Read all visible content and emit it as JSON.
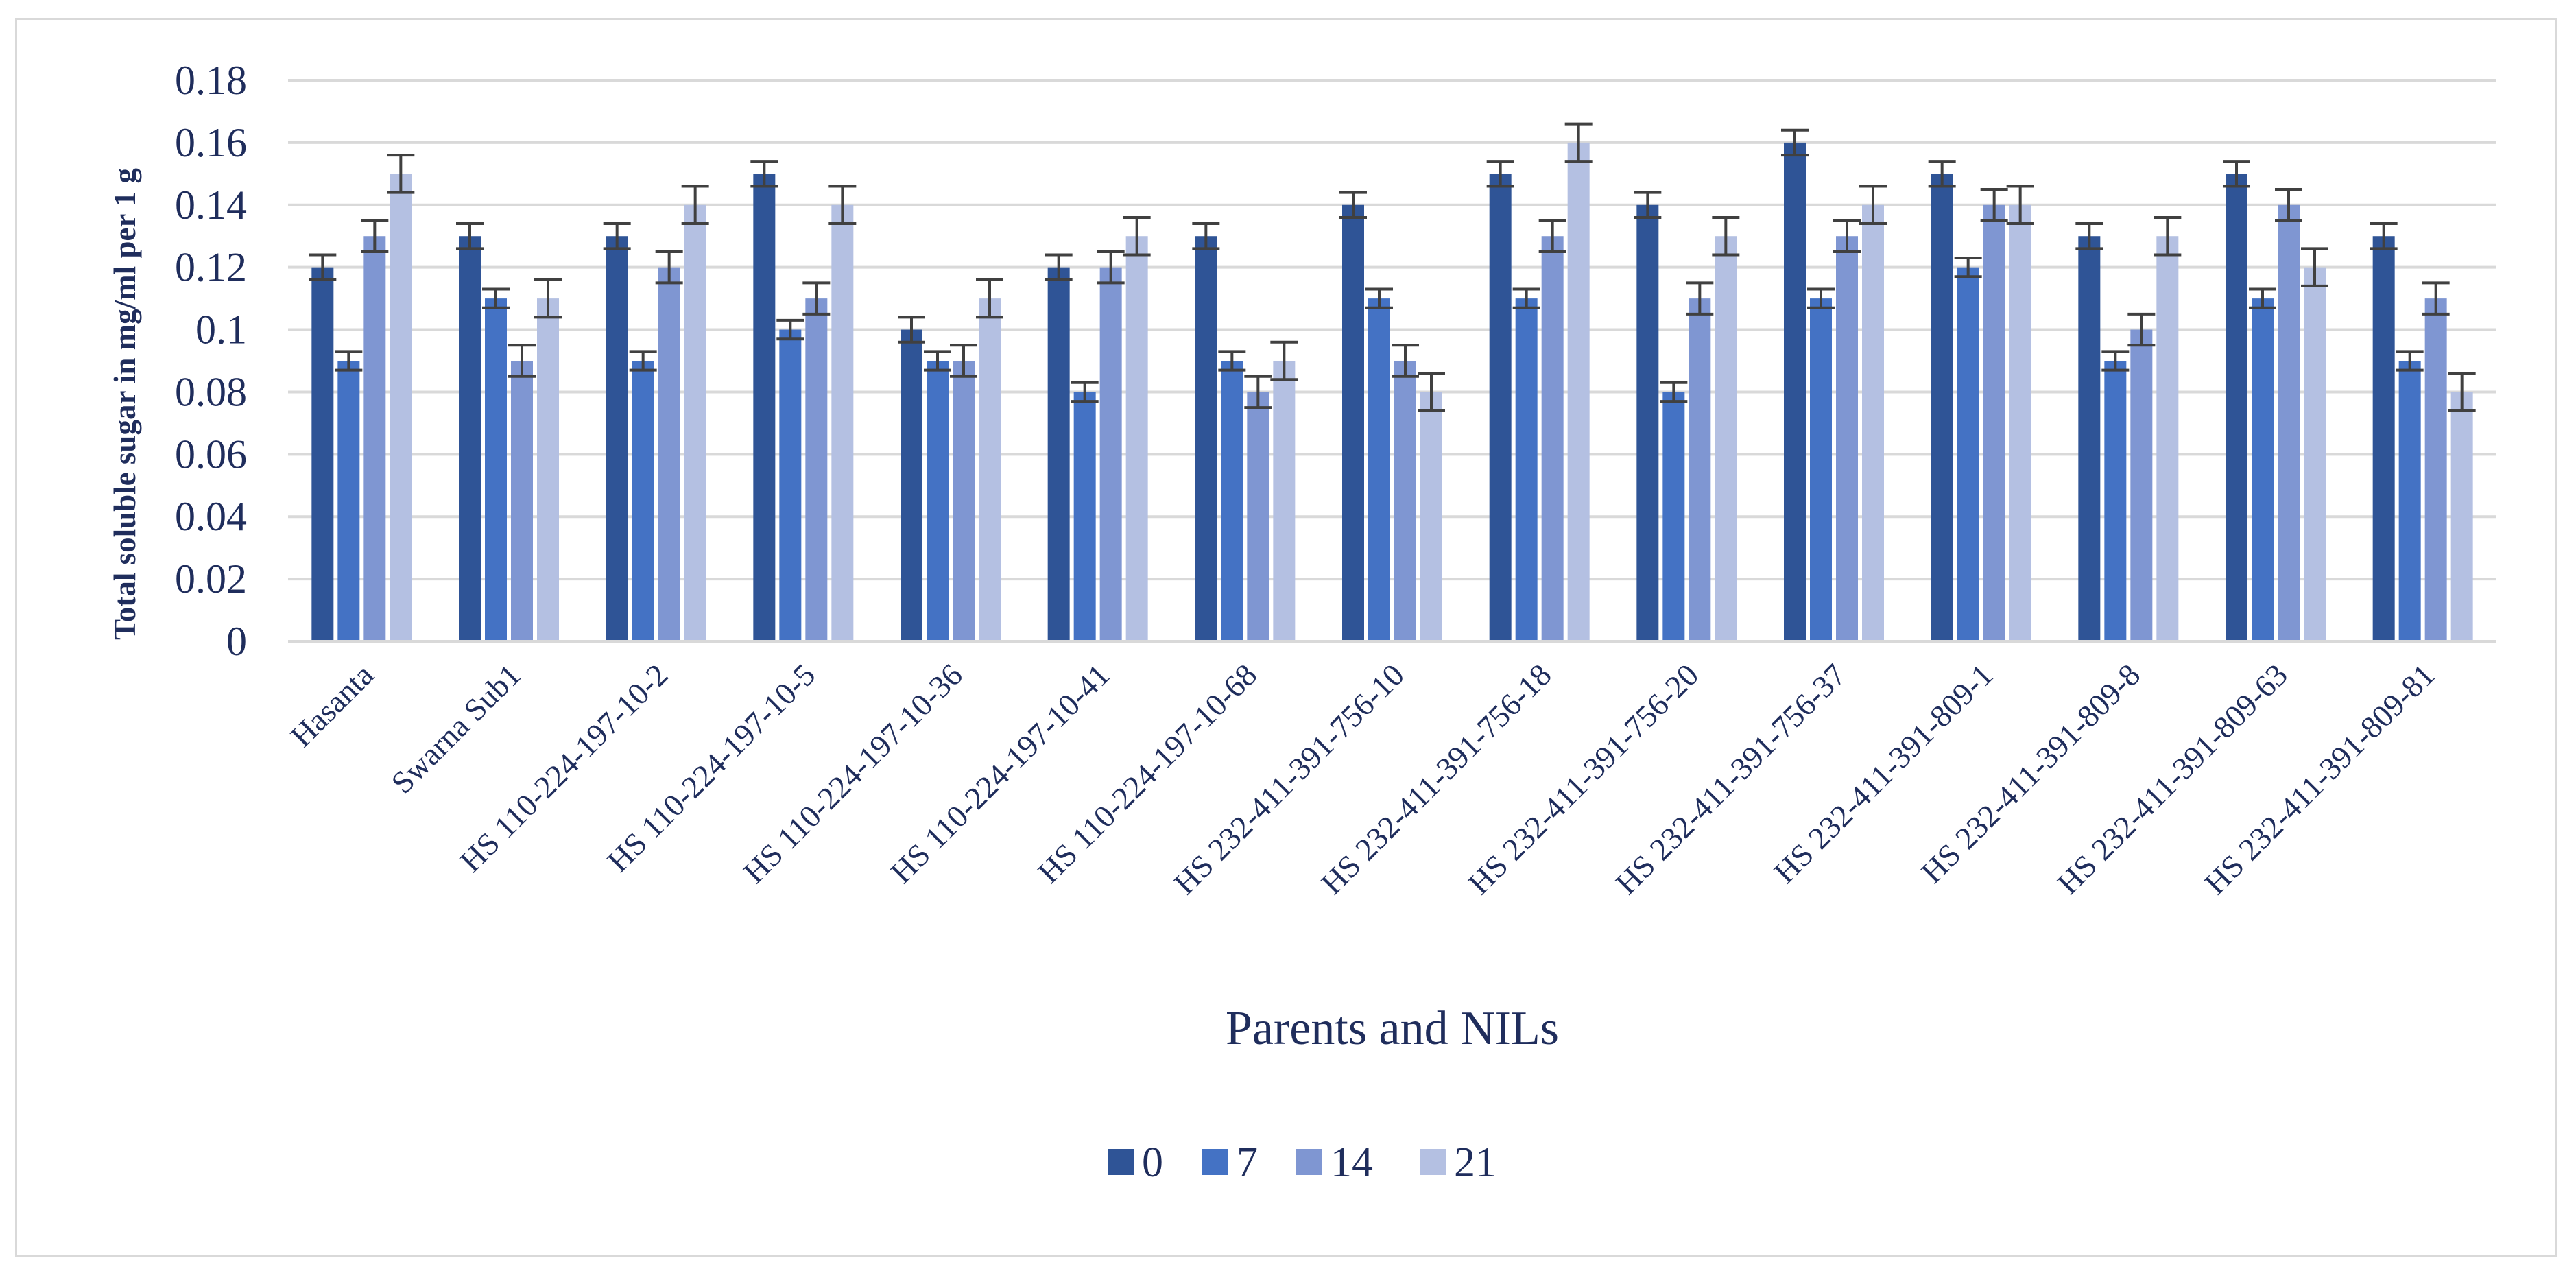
{
  "chart_data": {
    "type": "bar",
    "title": "",
    "xlabel": "Parents and NILs",
    "ylabel": "Total soluble sugar in mg/ml per 1 g",
    "ylim": [
      0,
      0.18
    ],
    "yticks": [
      0,
      0.02,
      0.04,
      0.06,
      0.08,
      0.1,
      0.12,
      0.14,
      0.16,
      0.18
    ],
    "ytick_labels": [
      "0",
      "0.02",
      "0.04",
      "0.06",
      "0.08",
      "0.1",
      "0.12",
      "0.14",
      "0.16",
      "0.18"
    ],
    "grid": true,
    "legend_position": "bottom",
    "categories": [
      "Hasanta",
      "Swarna Sub1",
      "HS 110-224-197-10-2",
      "HS 110-224-197-10-5",
      "HS 110-224-197-10-36",
      "HS 110-224-197-10-41",
      "HS 110-224-197-10-68",
      "HS 232-411-391-756-10",
      "HS 232-411-391-756-18",
      "HS 232-411-391-756-20",
      "HS 232-411-391-756-37",
      "HS 232-411-391-809-1",
      "HS 232-411-391-809-8",
      "HS 232-411-391-809-63",
      "HS 232-411-391-809-81"
    ],
    "series": [
      {
        "name": "0",
        "color": "#2f5496",
        "values": [
          0.12,
          0.13,
          0.13,
          0.15,
          0.1,
          0.12,
          0.13,
          0.14,
          0.15,
          0.14,
          0.16,
          0.15,
          0.13,
          0.15,
          0.13
        ],
        "errors": [
          0.004,
          0.004,
          0.004,
          0.004,
          0.004,
          0.004,
          0.004,
          0.004,
          0.004,
          0.004,
          0.004,
          0.004,
          0.004,
          0.004,
          0.004
        ]
      },
      {
        "name": "7",
        "color": "#4472c4",
        "values": [
          0.09,
          0.11,
          0.09,
          0.1,
          0.09,
          0.08,
          0.09,
          0.11,
          0.11,
          0.08,
          0.11,
          0.12,
          0.09,
          0.11,
          0.09
        ],
        "errors": [
          0.003,
          0.003,
          0.003,
          0.003,
          0.003,
          0.003,
          0.003,
          0.003,
          0.003,
          0.003,
          0.003,
          0.003,
          0.003,
          0.003,
          0.003
        ]
      },
      {
        "name": "14",
        "color": "#7f96d2",
        "values": [
          0.13,
          0.09,
          0.12,
          0.11,
          0.09,
          0.12,
          0.08,
          0.09,
          0.13,
          0.11,
          0.13,
          0.14,
          0.1,
          0.14,
          0.11
        ],
        "errors": [
          0.005,
          0.005,
          0.005,
          0.005,
          0.005,
          0.005,
          0.005,
          0.005,
          0.005,
          0.005,
          0.005,
          0.005,
          0.005,
          0.005,
          0.005
        ]
      },
      {
        "name": "21",
        "color": "#b4c0e2",
        "values": [
          0.15,
          0.11,
          0.14,
          0.14,
          0.11,
          0.13,
          0.09,
          0.08,
          0.16,
          0.13,
          0.14,
          0.14,
          0.13,
          0.12,
          0.08
        ],
        "errors": [
          0.006,
          0.006,
          0.006,
          0.006,
          0.006,
          0.006,
          0.006,
          0.006,
          0.006,
          0.006,
          0.006,
          0.006,
          0.006,
          0.006,
          0.006
        ]
      }
    ]
  }
}
